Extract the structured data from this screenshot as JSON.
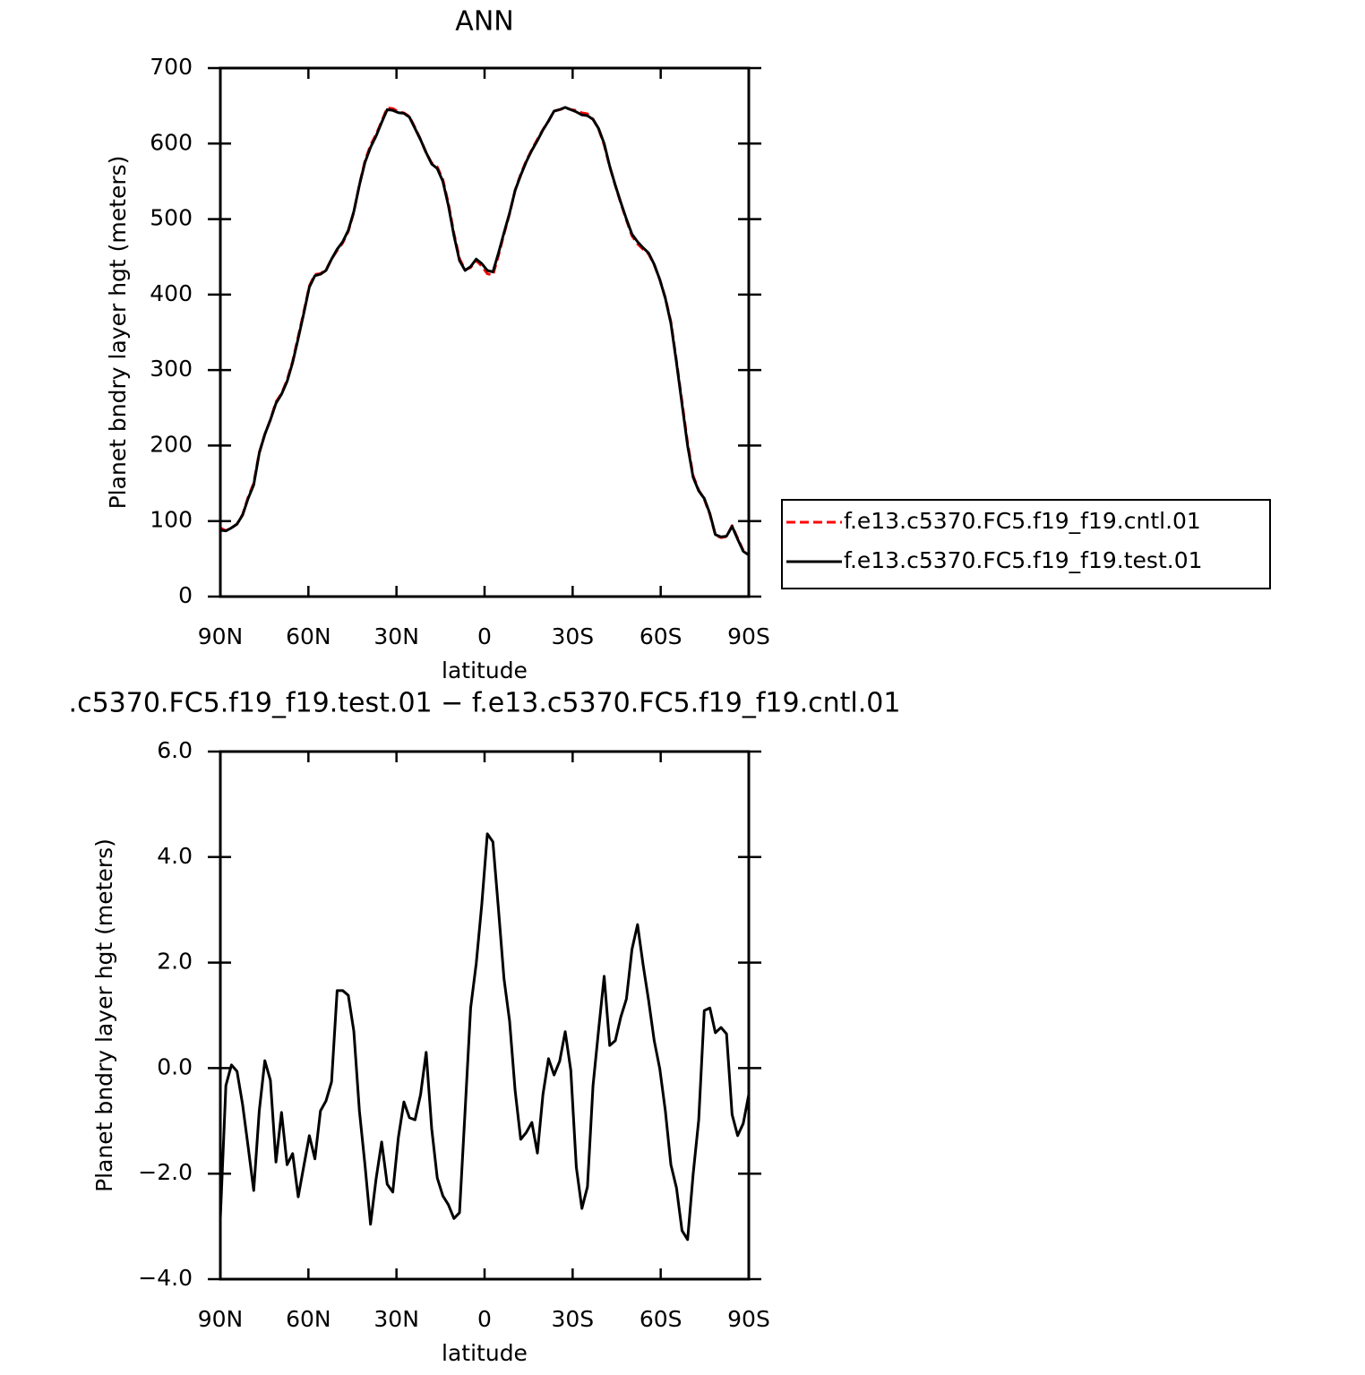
{
  "chart_data": [
    {
      "type": "line",
      "title": "ANN",
      "xlabel": "latitude",
      "ylabel": "Planet bndry layer hgt (meters)",
      "x": [
        90.0,
        88.11,
        86.21,
        84.32,
        82.42,
        80.53,
        78.63,
        76.74,
        74.84,
        72.95,
        71.05,
        69.16,
        67.26,
        65.37,
        63.47,
        61.58,
        59.68,
        57.79,
        55.89,
        54.0,
        52.11,
        50.21,
        48.32,
        46.42,
        44.53,
        42.63,
        40.74,
        38.84,
        36.95,
        35.05,
        33.16,
        31.26,
        29.37,
        27.47,
        25.58,
        23.68,
        21.79,
        19.89,
        18.0,
        16.11,
        14.21,
        12.32,
        10.42,
        8.53,
        6.63,
        4.74,
        2.84,
        0.95,
        -0.95,
        -2.84,
        -4.74,
        -6.63,
        -8.53,
        -10.42,
        -12.32,
        -14.21,
        -16.11,
        -18.0,
        -19.89,
        -21.79,
        -23.68,
        -25.58,
        -27.47,
        -29.37,
        -31.26,
        -33.16,
        -35.05,
        -36.95,
        -38.84,
        -40.74,
        -42.63,
        -44.53,
        -46.42,
        -48.32,
        -50.21,
        -52.11,
        -54.0,
        -55.89,
        -57.79,
        -59.68,
        -61.58,
        -63.47,
        -65.37,
        -67.26,
        -69.16,
        -71.05,
        -72.95,
        -74.84,
        -76.74,
        -78.63,
        -80.53,
        -82.42,
        -84.32,
        -86.21,
        -88.11,
        -90.0
      ],
      "series": [
        {
          "name": "f.e13.c5370.FC5.f19_f19.cntl.01",
          "color": "#ff0000",
          "linestyle": "dashed",
          "values": [
            90.9,
            87.3,
            90.9,
            96.1,
            108.7,
            131.5,
            150.3,
            190.8,
            214.9,
            234.2,
            257.8,
            268.8,
            286.8,
            311.6,
            344.4,
            376.9,
            411.3,
            426.7,
            427.8,
            432.6,
            447.3,
            458.5,
            468.5,
            483.6,
            509.3,
            545.8,
            576.8,
            598.0,
            612.1,
            629.4,
            647.2,
            646.4,
            642.3,
            640.6,
            635.9,
            621.0,
            605.5,
            587.7,
            574.2,
            569.1,
            552.4,
            520.6,
            480.9,
            447.7,
            432.8,
            435.9,
            445.0,
            437.9,
            427.6,
            425.7,
            452.0,
            480.3,
            507.1,
            538.4,
            559.4,
            577.2,
            592.0,
            605.6,
            618.5,
            629.8,
            643.1,
            644.9,
            647.3,
            645.0,
            643.9,
            640.7,
            639.3,
            632.3,
            619.3,
            598.3,
            569.6,
            544.5,
            521.0,
            498.7,
            477.8,
            467.3,
            460.0,
            453.7,
            439.5,
            420.0,
            395.8,
            363.8,
            312.3,
            258.1,
            203.3,
            160.0,
            141.0,
            128.9,
            108.9,
            81.3,
            78.2,
            79.4,
            93.9,
            77.3,
            61.1,
            55.5
          ]
        },
        {
          "name": "f.e13.c5370.FC5.f19_f19.test.01",
          "color": "#000000",
          "linestyle": "solid",
          "values": [
            88,
            87,
            91,
            96,
            108,
            130,
            148,
            190,
            215,
            234,
            256,
            268,
            285,
            310,
            342,
            375,
            410,
            425,
            427,
            432,
            447,
            460,
            470,
            485,
            510,
            545,
            575,
            595,
            610,
            628,
            645,
            644,
            641,
            640,
            635,
            620,
            605,
            588,
            573,
            567,
            550,
            518,
            478,
            445,
            432,
            437,
            447,
            441,
            432,
            430,
            455,
            482,
            508,
            538,
            558,
            576,
            591,
            604,
            618,
            630,
            643,
            645,
            648,
            645,
            642,
            638,
            637,
            632,
            620,
            600,
            570,
            545,
            522,
            500,
            480,
            470,
            462,
            455,
            440,
            420,
            395,
            362,
            310,
            255,
            200,
            158,
            140,
            130,
            110,
            82,
            79,
            80,
            93,
            76,
            60,
            55
          ]
        }
      ],
      "xlim": [
        90,
        -90
      ],
      "xticks": [
        {
          "value": 90,
          "label": "90N"
        },
        {
          "value": 60,
          "label": "60N"
        },
        {
          "value": 30,
          "label": "30N"
        },
        0,
        {
          "value": -30,
          "label": "30S"
        },
        {
          "value": -60,
          "label": "60S"
        },
        {
          "value": -90,
          "label": "90S"
        }
      ],
      "ylim": [
        0,
        700
      ],
      "yticks": [
        0,
        100,
        200,
        300,
        400,
        500,
        600,
        700
      ],
      "legend": "right"
    },
    {
      "type": "line",
      "title": ".c5370.FC5.f19_f19.test.01 − f.e13.c5370.FC5.f19_f19.cntl.01",
      "xlabel": "latitude",
      "ylabel": "Planet bndry layer hgt (meters)",
      "x": [
        90.0,
        88.11,
        86.21,
        84.32,
        82.42,
        80.53,
        78.63,
        76.74,
        74.84,
        72.95,
        71.05,
        69.16,
        67.26,
        65.37,
        63.47,
        61.58,
        59.68,
        57.79,
        55.89,
        54.0,
        52.11,
        50.21,
        48.32,
        46.42,
        44.53,
        42.63,
        40.74,
        38.84,
        36.95,
        35.05,
        33.16,
        31.26,
        29.37,
        27.47,
        25.58,
        23.68,
        21.79,
        19.89,
        18.0,
        16.11,
        14.21,
        12.32,
        10.42,
        8.53,
        6.63,
        4.74,
        2.84,
        0.95,
        -0.95,
        -2.84,
        -4.74,
        -6.63,
        -8.53,
        -10.42,
        -12.32,
        -14.21,
        -16.11,
        -18.0,
        -19.89,
        -21.79,
        -23.68,
        -25.58,
        -27.47,
        -29.37,
        -31.26,
        -33.16,
        -35.05,
        -36.95,
        -38.84,
        -40.74,
        -42.63,
        -44.53,
        -46.42,
        -48.32,
        -50.21,
        -52.11,
        -54.0,
        -55.89,
        -57.79,
        -59.68,
        -61.58,
        -63.47,
        -65.37,
        -67.26,
        -69.16,
        -71.05,
        -72.95,
        -74.84,
        -76.74,
        -78.63,
        -80.53,
        -82.42,
        -84.32,
        -86.21,
        -88.11,
        -90.0
      ],
      "series": [
        {
          "color": "#000000",
          "linestyle": "solid",
          "values": [
            -2.85,
            -0.33,
            0.06,
            -0.06,
            -0.69,
            -1.49,
            -2.32,
            -0.81,
            0.14,
            -0.23,
            -1.78,
            -0.84,
            -1.83,
            -1.62,
            -2.44,
            -1.86,
            -1.28,
            -1.72,
            -0.81,
            -0.62,
            -0.26,
            1.47,
            1.47,
            1.38,
            0.7,
            -0.81,
            -1.83,
            -2.96,
            -2.1,
            -1.4,
            -2.2,
            -2.35,
            -1.32,
            -0.64,
            -0.94,
            -0.98,
            -0.5,
            0.3,
            -1.15,
            -2.08,
            -2.42,
            -2.59,
            -2.85,
            -2.74,
            -0.81,
            1.14,
            1.98,
            3.1,
            4.44,
            4.29,
            3.01,
            1.69,
            0.89,
            -0.43,
            -1.35,
            -1.22,
            -1.03,
            -1.61,
            -0.5,
            0.18,
            -0.13,
            0.13,
            0.69,
            -0.04,
            -1.88,
            -2.66,
            -2.25,
            -0.33,
            0.72,
            1.74,
            0.43,
            0.52,
            0.97,
            1.31,
            2.25,
            2.72,
            1.96,
            1.28,
            0.52,
            -0.01,
            -0.81,
            -1.83,
            -2.27,
            -3.08,
            -3.25,
            -2.01,
            -0.98,
            1.09,
            1.14,
            0.67,
            0.77,
            0.65,
            -0.88,
            -1.28,
            -1.05,
            -0.5
          ]
        }
      ],
      "xlim": [
        90,
        -90
      ],
      "xticks": [
        {
          "value": 90,
          "label": "90N"
        },
        {
          "value": 60,
          "label": "60N"
        },
        {
          "value": 30,
          "label": "30N"
        },
        0,
        {
          "value": -30,
          "label": "30S"
        },
        {
          "value": -60,
          "label": "60S"
        },
        {
          "value": -90,
          "label": "90S"
        }
      ],
      "ylim": [
        -4,
        6
      ],
      "yticks": [
        {
          "value": -4,
          "label": "−4.0"
        },
        {
          "value": -2,
          "label": "−2.0"
        },
        {
          "value": 0,
          "label": "0.0"
        },
        {
          "value": 2,
          "label": "2.0"
        },
        {
          "value": 4,
          "label": "4.0"
        },
        {
          "value": 6,
          "label": "6.0"
        }
      ]
    }
  ]
}
